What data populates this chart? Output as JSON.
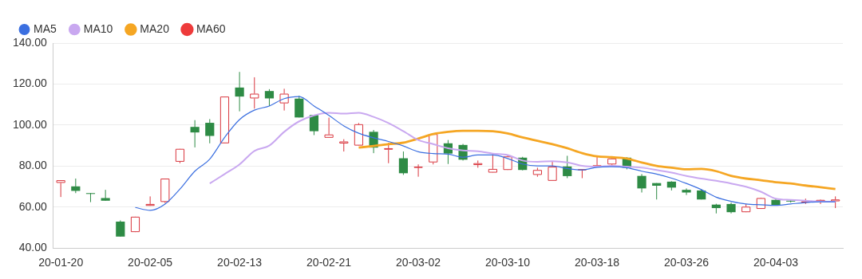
{
  "chart_data": {
    "type": "candlestick",
    "categories": [
      "20-01-20",
      null,
      null,
      null,
      null,
      null,
      "20-02-05",
      null,
      null,
      null,
      null,
      null,
      "20-02-13",
      null,
      null,
      null,
      null,
      null,
      "20-02-21",
      null,
      null,
      null,
      null,
      null,
      "20-03-02",
      null,
      null,
      null,
      null,
      null,
      "20-03-10",
      null,
      null,
      null,
      null,
      null,
      "20-03-18",
      null,
      null,
      null,
      null,
      null,
      "20-03-26",
      null,
      null,
      null,
      null,
      null,
      "20-04-03",
      null,
      null,
      null,
      null
    ],
    "ohlc": [
      [
        71.8,
        73.1,
        64.9,
        73.1
      ],
      [
        70.1,
        73.9,
        66.8,
        67.9
      ],
      [
        66.8,
        66.8,
        62.4,
        66.4
      ],
      [
        64.4,
        68.4,
        63.1,
        63.1
      ],
      [
        52.9,
        53.5,
        45.6,
        45.6
      ],
      [
        47.8,
        55.3,
        47.8,
        55.3
      ],
      [
        60.6,
        65.2,
        60.6,
        61.5
      ],
      [
        62.5,
        73.9,
        61.9,
        73.9
      ],
      [
        82.1,
        88.4,
        81.4,
        88.4
      ],
      [
        99.1,
        102.4,
        89.1,
        96.4
      ],
      [
        101.1,
        102.9,
        91.1,
        94.7
      ],
      [
        91.1,
        113.9,
        91.1,
        113.9
      ],
      [
        118.3,
        125.9,
        106.7,
        113.9
      ],
      [
        113.0,
        123.3,
        108.0,
        115.3
      ],
      [
        116.6,
        117.5,
        109.3,
        113.0
      ],
      [
        110.6,
        117.7,
        107.1,
        115.3
      ],
      [
        112.9,
        114.3,
        103.7,
        103.7
      ],
      [
        104.9,
        104.9,
        95.1,
        97.0
      ],
      [
        93.8,
        103.6,
        93.8,
        95.4
      ],
      [
        91.0,
        93.1,
        87.1,
        92.0
      ],
      [
        90.0,
        101.0,
        90.0,
        100.4
      ],
      [
        96.7,
        97.6,
        86.3,
        89.0
      ],
      [
        88.0,
        91.4,
        81.4,
        88.7
      ],
      [
        83.8,
        87.1,
        75.7,
        76.5
      ],
      [
        79.3,
        80.8,
        74.8,
        79.7
      ],
      [
        81.8,
        96.0,
        80.8,
        95.6
      ],
      [
        91.1,
        92.7,
        81.0,
        86.1
      ],
      [
        90.3,
        90.8,
        82.7,
        83.1
      ],
      [
        80.5,
        82.7,
        79.2,
        81.4
      ],
      [
        76.8,
        85.8,
        76.8,
        78.6
      ],
      [
        78.1,
        85.4,
        78.1,
        84.7
      ],
      [
        84.1,
        84.5,
        77.9,
        78.1
      ],
      [
        75.7,
        79.2,
        74.8,
        78.1
      ],
      [
        72.8,
        82.4,
        72.8,
        79.7
      ],
      [
        79.8,
        85.0,
        74.1,
        75.1
      ],
      [
        78.1,
        78.5,
        74.1,
        78.5
      ],
      [
        79.7,
        85.0,
        79.7,
        80.4
      ],
      [
        80.8,
        84.0,
        80.5,
        83.7
      ],
      [
        84.1,
        84.3,
        78.4,
        79.2
      ],
      [
        75.2,
        76.1,
        67.1,
        69.1
      ],
      [
        71.7,
        71.7,
        63.7,
        70.4
      ],
      [
        72.4,
        72.6,
        68.1,
        69.5
      ],
      [
        68.4,
        69.1,
        65.9,
        67.1
      ],
      [
        68.1,
        68.8,
        63.7,
        63.7
      ],
      [
        61.2,
        61.6,
        56.9,
        59.5
      ],
      [
        61.5,
        62.2,
        56.9,
        57.5
      ],
      [
        57.5,
        61.5,
        57.5,
        60.2
      ],
      [
        59.1,
        64.6,
        59.1,
        64.4
      ],
      [
        63.5,
        64.1,
        60.8,
        60.8
      ],
      [
        63.1,
        63.7,
        62.2,
        62.7
      ],
      [
        62.4,
        64.1,
        61.5,
        62.8
      ],
      [
        62.8,
        63.7,
        61.5,
        63.5
      ],
      [
        62.8,
        65.2,
        59.5,
        63.7
      ]
    ],
    "series": [
      {
        "name": "MA5",
        "type": "line",
        "color": "#3b6fe0",
        "values": [
          null,
          null,
          null,
          null,
          null,
          59.8,
          58.4,
          61.5,
          68.8,
          77.5,
          83.4,
          94.0,
          102.7,
          107.3,
          109.3,
          112.9,
          113.9,
          109.3,
          104.7,
          99.6,
          96.0,
          93.8,
          92.0,
          89.8,
          87.0,
          86.1,
          85.8,
          84.3,
          85.4,
          85.4,
          83.7,
          81.0,
          80.1,
          80.1,
          78.8,
          78.1,
          79.4,
          79.7,
          79.2,
          77.5,
          76.1,
          74.1,
          71.5,
          68.5,
          64.8,
          62.8,
          61.5,
          61.1,
          60.8,
          61.5,
          62.2,
          62.6,
          62.6
        ]
      },
      {
        "name": "MA10",
        "type": "line",
        "color": "#c9a8f0",
        "values": [
          null,
          null,
          null,
          null,
          null,
          null,
          null,
          null,
          null,
          null,
          71.5,
          76.1,
          80.8,
          87.4,
          90.0,
          96.7,
          101.8,
          104.7,
          106.0,
          105.6,
          106.0,
          104.0,
          101.0,
          97.0,
          92.7,
          90.7,
          88.7,
          87.6,
          87.2,
          86.1,
          85.4,
          82.7,
          82.1,
          82.4,
          81.8,
          80.1,
          79.7,
          80.1,
          79.7,
          79.2,
          78.1,
          76.8,
          75.2,
          73.9,
          72.8,
          71.5,
          69.9,
          67.5,
          64.1,
          63.5,
          63.1,
          62.7,
          62.6
        ]
      },
      {
        "name": "MA20",
        "type": "line",
        "color": "#f5a623",
        "values": [
          null,
          null,
          null,
          null,
          null,
          null,
          null,
          null,
          null,
          null,
          null,
          null,
          null,
          null,
          null,
          null,
          null,
          null,
          null,
          null,
          89.0,
          89.8,
          90.7,
          91.4,
          93.4,
          95.6,
          96.7,
          97.2,
          97.2,
          97.0,
          95.9,
          94.0,
          92.3,
          90.7,
          88.7,
          86.3,
          84.7,
          84.3,
          83.7,
          81.7,
          80.1,
          79.2,
          78.4,
          78.6,
          77.5,
          75.2,
          73.9,
          73.1,
          72.1,
          71.5,
          70.5,
          69.7,
          68.8
        ]
      },
      {
        "name": "MA60",
        "type": "line",
        "color": "#ee3b3b",
        "values": [
          null,
          null,
          null,
          null,
          null,
          null,
          null,
          null,
          null,
          null,
          null,
          null,
          null,
          null,
          null,
          null,
          null,
          null,
          null,
          null,
          null,
          null,
          null,
          null,
          null,
          null,
          null,
          null,
          null,
          null,
          null,
          null,
          null,
          null,
          null,
          null,
          null,
          null,
          null,
          null,
          null,
          null,
          null,
          null,
          null,
          null,
          null,
          null,
          null,
          null,
          null,
          null,
          null
        ]
      }
    ],
    "ylim": [
      40,
      140
    ],
    "yticks": [
      {
        "value": 40,
        "label": "40.00"
      },
      {
        "value": 60,
        "label": "60.00"
      },
      {
        "value": 80,
        "label": "80.00"
      },
      {
        "value": 100,
        "label": "100.00"
      },
      {
        "value": 120,
        "label": "120.00"
      },
      {
        "value": 140,
        "label": "140.00"
      }
    ],
    "grid": "y",
    "legend": "top left",
    "marker": "none"
  }
}
